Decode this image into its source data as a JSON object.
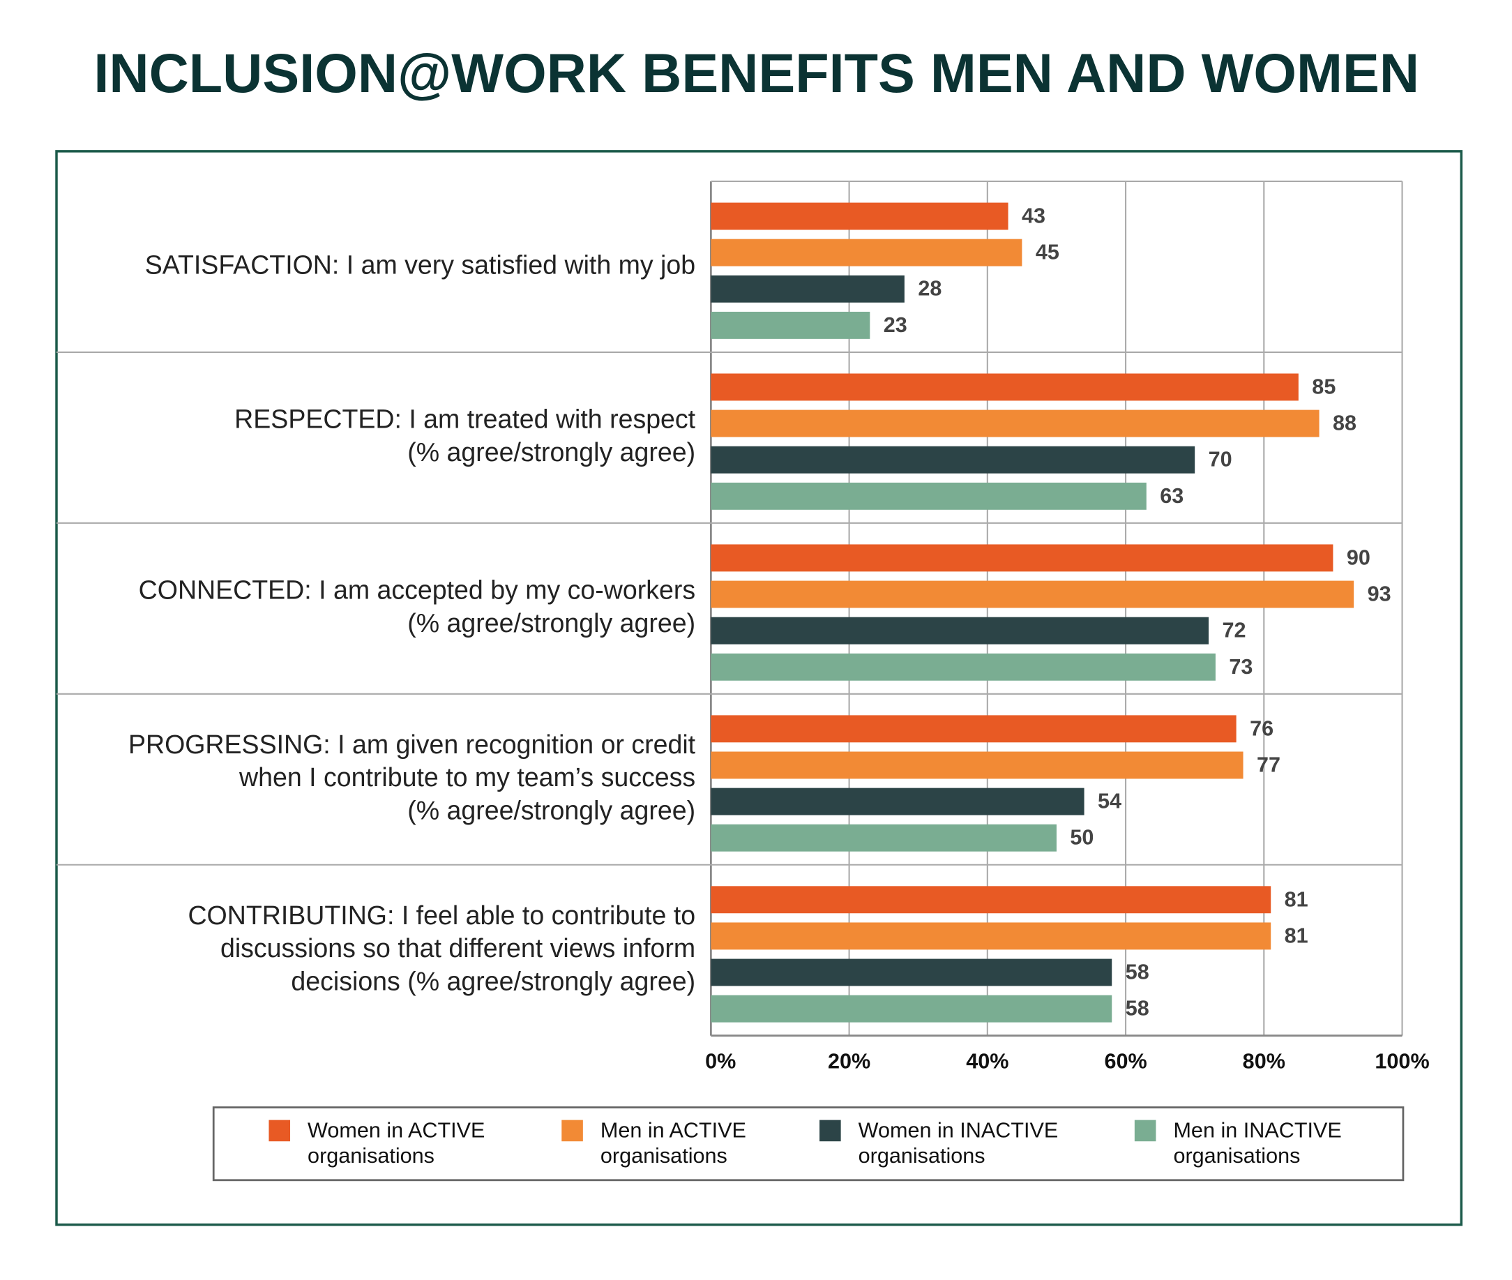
{
  "chart_data": {
    "type": "bar",
    "orientation": "horizontal",
    "title": "INCLUSION@WORK BENEFITS MEN AND WOMEN",
    "categories": [
      [
        "SATISFACTION: I am very satisfied with my job"
      ],
      [
        "RESPECTED: I am treated with respect",
        "(% agree/strongly agree)"
      ],
      [
        "CONNECTED: I am accepted by my co-workers",
        "(% agree/strongly agree)"
      ],
      [
        "PROGRESSING: I am given recognition or credit",
        "when I contribute to my team’s success",
        "(% agree/strongly agree)"
      ],
      [
        "CONTRIBUTING: I feel able to contribute to",
        "discussions so that different views inform",
        "decisions (% agree/strongly agree)"
      ]
    ],
    "series": [
      {
        "name": "Women in ACTIVE organisations",
        "color": "#e85a24",
        "values": [
          43,
          85,
          90,
          76,
          81
        ]
      },
      {
        "name": "Men in ACTIVE organisations",
        "color": "#f28a35",
        "values": [
          45,
          88,
          93,
          77,
          81
        ]
      },
      {
        "name": "Women in INACTIVE organisations",
        "color": "#2c4447",
        "values": [
          28,
          70,
          72,
          54,
          58
        ]
      },
      {
        "name": "Men in INACTIVE organisations",
        "color": "#7aad92",
        "values": [
          23,
          63,
          73,
          50,
          58
        ]
      }
    ],
    "xlim": [
      0,
      100
    ],
    "xticks": [
      {
        "value": 0,
        "label": "0%"
      },
      {
        "value": 20,
        "label": "20%"
      },
      {
        "value": 40,
        "label": "40%"
      },
      {
        "value": 60,
        "label": "60%"
      },
      {
        "value": 80,
        "label": "80%"
      },
      {
        "value": 100,
        "label": "100%"
      }
    ],
    "grid": true,
    "legend": "bottom"
  }
}
